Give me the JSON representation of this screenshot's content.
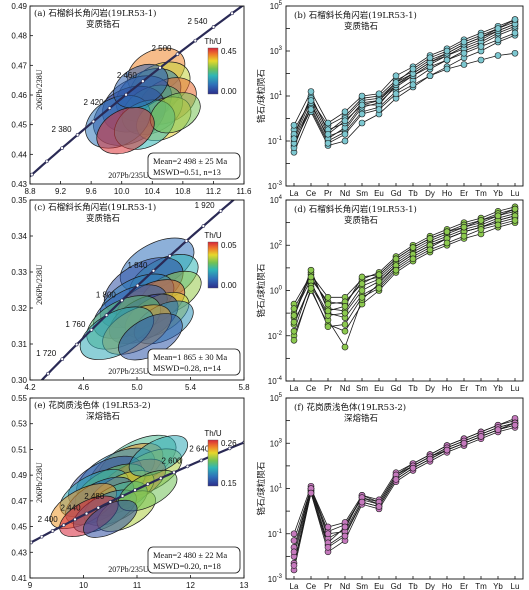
{
  "chart_data": [
    {
      "panel": "a",
      "type": "scatter",
      "kind": "concordia",
      "title": "(a) 石榴斜长角闪岩(19LR53-1)",
      "subtitle": "变质锆石",
      "xlabel": "207Pb/235U",
      "ylabel": "206Pb/238U",
      "xlim": [
        8.8,
        11.6
      ],
      "ylim": [
        0.43,
        0.49
      ],
      "xticks": [
        "8.8",
        "9.2",
        "9.6",
        "10.0",
        "10.4",
        "10.8",
        "11.2",
        "11.6"
      ],
      "yticks": [
        "0.43",
        "0.44",
        "0.45",
        "0.46",
        "0.47",
        "0.48",
        "0.49"
      ],
      "ages": [
        "2 380",
        "2 420",
        "2 460",
        "2 500",
        "2 540"
      ],
      "colorbar": {
        "label": "Th/U",
        "max": "0.45",
        "min": "0.00"
      },
      "stats": {
        "line1": "Mean=2 498 ± 25 Ma",
        "line2": "MSWD=0.51, n=13"
      },
      "ellipses": [
        {
          "x": 10.45,
          "y": 0.468,
          "rx": 0.4,
          "ry": 0.007,
          "tu": 0.38
        },
        {
          "x": 10.5,
          "y": 0.463,
          "rx": 0.42,
          "ry": 0.0072,
          "tu": 0.3
        },
        {
          "x": 10.35,
          "y": 0.46,
          "rx": 0.45,
          "ry": 0.008,
          "tu": 0.12
        },
        {
          "x": 10.6,
          "y": 0.458,
          "rx": 0.4,
          "ry": 0.007,
          "tu": 0.4
        },
        {
          "x": 10.2,
          "y": 0.457,
          "rx": 0.48,
          "ry": 0.0085,
          "tu": 0.05
        },
        {
          "x": 10.4,
          "y": 0.455,
          "rx": 0.42,
          "ry": 0.0075,
          "tu": 0.22
        },
        {
          "x": 10.1,
          "y": 0.453,
          "rx": 0.5,
          "ry": 0.009,
          "tu": 0.02
        },
        {
          "x": 10.55,
          "y": 0.452,
          "rx": 0.38,
          "ry": 0.0065,
          "tu": 0.33
        },
        {
          "x": 9.95,
          "y": 0.451,
          "rx": 0.45,
          "ry": 0.008,
          "tu": 0.1
        },
        {
          "x": 10.3,
          "y": 0.45,
          "rx": 0.42,
          "ry": 0.0075,
          "tu": 0.18
        },
        {
          "x": 10.7,
          "y": 0.454,
          "rx": 0.35,
          "ry": 0.006,
          "tu": 0.25
        },
        {
          "x": 10.05,
          "y": 0.448,
          "rx": 0.4,
          "ry": 0.007,
          "tu": 0.44
        },
        {
          "x": 10.25,
          "y": 0.463,
          "rx": 0.38,
          "ry": 0.0065,
          "tu": 0.07
        }
      ]
    },
    {
      "panel": "b",
      "type": "line",
      "kind": "ree",
      "title": "(b) 石榴斜长角闪岩(19LR53-1)",
      "subtitle": "变质锆石",
      "ylabel": "锆石/球粒陨石",
      "categories": [
        "La",
        "Ce",
        "Pr",
        "Nd",
        "Sm",
        "Eu",
        "Gd",
        "Tb",
        "Dy",
        "Ho",
        "Er",
        "Tm",
        "Yb",
        "Lu"
      ],
      "ylim_log": [
        -3,
        5
      ],
      "color": "#7cc7d0",
      "series": [
        {
          "values": [
            -0.5,
            0.8,
            -0.3,
            0.1,
            0.9,
            1.0,
            1.7,
            2.1,
            2.6,
            2.9,
            3.3,
            3.6,
            4.0,
            4.3
          ]
        },
        {
          "values": [
            -1.2,
            0.5,
            -1.0,
            -0.6,
            0.3,
            0.5,
            1.2,
            1.7,
            2.2,
            2.6,
            3.0,
            3.3,
            3.7,
            4.0
          ]
        },
        {
          "values": [
            -0.8,
            1.0,
            -0.6,
            0.0,
            0.8,
            0.9,
            1.6,
            2.0,
            2.5,
            2.8,
            3.2,
            3.5,
            3.9,
            4.2
          ]
        },
        {
          "values": [
            -1.5,
            0.3,
            -1.2,
            -1.0,
            -0.2,
            0.2,
            0.9,
            1.4,
            1.9,
            2.3,
            2.7,
            3.0,
            3.4,
            3.7
          ]
        },
        {
          "values": [
            -0.3,
            1.2,
            -0.2,
            0.3,
            1.0,
            1.1,
            1.9,
            2.3,
            2.8,
            3.1,
            3.5,
            3.8,
            4.1,
            4.4
          ]
        },
        {
          "values": [
            -1.0,
            0.6,
            -0.8,
            -0.5,
            0.5,
            0.7,
            1.4,
            1.9,
            2.4,
            2.8,
            3.1,
            3.4,
            3.8,
            4.1
          ]
        },
        {
          "values": [
            -1.3,
            0.7,
            -0.9,
            -0.4,
            0.6,
            0.6,
            1.5,
            1.9,
            2.3,
            2.6,
            2.9,
            3.2,
            3.5,
            3.8
          ]
        },
        {
          "values": [
            -0.7,
            0.9,
            -0.5,
            -0.2,
            0.7,
            0.8,
            1.5,
            2.0,
            2.5,
            2.9,
            3.3,
            3.6,
            3.9,
            4.2
          ]
        },
        {
          "values": [
            -1.1,
            0.4,
            -1.1,
            -0.7,
            0.2,
            0.4,
            1.1,
            1.5,
            1.9,
            2.2,
            2.4,
            2.6,
            2.8,
            2.9
          ]
        },
        {
          "values": [
            -0.9,
            0.8,
            -0.7,
            -0.1,
            0.6,
            0.8,
            1.6,
            2.2,
            2.7,
            3.0,
            3.4,
            3.7,
            4.0,
            4.4
          ]
        }
      ]
    },
    {
      "panel": "c",
      "type": "scatter",
      "kind": "concordia",
      "title": "(c) 石榴斜长角闪岩(19LR53-1)",
      "subtitle": "变质锆石",
      "xlabel": "207Pb/235U",
      "ylabel": "206Pb/238U",
      "xlim": [
        4.2,
        5.8
      ],
      "ylim": [
        0.3,
        0.35
      ],
      "xticks": [
        "4.2",
        "4.6",
        "5.0",
        "5.4",
        "5.8"
      ],
      "yticks": [
        "0.30",
        "0.31",
        "0.32",
        "0.33",
        "0.34",
        "0.35"
      ],
      "ages": [
        "1 720",
        "1 760",
        "1 800",
        "1 840",
        "1 920"
      ],
      "colorbar": {
        "label": "Th/U",
        "max": "0.05",
        "min": "0.00"
      },
      "stats": {
        "line1": "Mean=1 865 ± 30 Ma",
        "line2": "MSWD=0.28, n=14"
      },
      "ellipses": [
        {
          "x": 5.15,
          "y": 0.332,
          "rx": 0.3,
          "ry": 0.006,
          "tu": 0.01
        },
        {
          "x": 5.2,
          "y": 0.328,
          "rx": 0.28,
          "ry": 0.0055,
          "tu": 0.02
        },
        {
          "x": 5.05,
          "y": 0.326,
          "rx": 0.32,
          "ry": 0.0065,
          "tu": 0.005
        },
        {
          "x": 5.25,
          "y": 0.324,
          "rx": 0.25,
          "ry": 0.005,
          "tu": 0.03
        },
        {
          "x": 5.0,
          "y": 0.322,
          "rx": 0.3,
          "ry": 0.006,
          "tu": 0.012
        },
        {
          "x": 5.1,
          "y": 0.321,
          "rx": 0.28,
          "ry": 0.0055,
          "tu": 0.045
        },
        {
          "x": 4.95,
          "y": 0.319,
          "rx": 0.3,
          "ry": 0.006,
          "tu": 0.008
        },
        {
          "x": 5.15,
          "y": 0.318,
          "rx": 0.26,
          "ry": 0.005,
          "tu": 0.035
        },
        {
          "x": 5.05,
          "y": 0.317,
          "rx": 0.28,
          "ry": 0.0055,
          "tu": 0.002
        },
        {
          "x": 4.9,
          "y": 0.316,
          "rx": 0.3,
          "ry": 0.006,
          "tu": 0.025
        },
        {
          "x": 5.2,
          "y": 0.316,
          "rx": 0.24,
          "ry": 0.0048,
          "tu": 0.015
        },
        {
          "x": 5.0,
          "y": 0.314,
          "rx": 0.28,
          "ry": 0.0055,
          "tu": 0.04
        },
        {
          "x": 4.85,
          "y": 0.313,
          "rx": 0.3,
          "ry": 0.0058,
          "tu": 0.018
        },
        {
          "x": 5.1,
          "y": 0.312,
          "rx": 0.26,
          "ry": 0.0052,
          "tu": 0.006
        }
      ]
    },
    {
      "panel": "d",
      "type": "line",
      "kind": "ree",
      "title": "(d) 石榴斜长角闪岩(19LR53-1)",
      "subtitle": "变质锆石",
      "ylabel": "锆石/球粒陨石",
      "categories": [
        "La",
        "Ce",
        "Pr",
        "Nd",
        "Sm",
        "Eu",
        "Gd",
        "Tb",
        "Dy",
        "Ho",
        "Er",
        "Tm",
        "Yb",
        "Lu"
      ],
      "ylim_log": [
        -4,
        4
      ],
      "color": "#8cc94f",
      "series": [
        {
          "values": [
            -1.0,
            0.5,
            -0.5,
            -0.6,
            0.4,
            0.6,
            1.3,
            1.8,
            2.2,
            2.5,
            2.8,
            3.0,
            3.3,
            3.5
          ]
        },
        {
          "values": [
            -1.5,
            0.3,
            -1.0,
            -1.2,
            -0.2,
            0.2,
            1.0,
            1.5,
            1.9,
            2.3,
            2.6,
            2.8,
            3.1,
            3.3
          ]
        },
        {
          "values": [
            -0.6,
            0.7,
            -0.3,
            -0.3,
            0.5,
            0.8,
            1.5,
            2.0,
            2.4,
            2.7,
            3.0,
            3.2,
            3.5,
            3.7
          ]
        },
        {
          "values": [
            -2.0,
            0.0,
            -1.5,
            -1.8,
            -0.6,
            0.0,
            0.8,
            1.3,
            1.7,
            2.0,
            2.3,
            2.5,
            2.8,
            3.0
          ]
        },
        {
          "values": [
            -1.2,
            0.8,
            -0.8,
            -0.9,
            0.2,
            0.5,
            1.2,
            1.7,
            2.1,
            2.4,
            2.7,
            2.9,
            3.2,
            3.4
          ]
        },
        {
          "values": [
            -1.8,
            0.4,
            -1.3,
            -2.5,
            -0.4,
            0.3,
            1.1,
            1.6,
            2.0,
            2.3,
            2.6,
            2.8,
            3.0,
            3.2
          ]
        },
        {
          "values": [
            -0.8,
            0.6,
            -0.6,
            -0.5,
            0.3,
            0.7,
            1.4,
            1.9,
            2.3,
            2.6,
            2.9,
            3.1,
            3.4,
            3.6
          ]
        },
        {
          "values": [
            -1.4,
            0.2,
            -1.1,
            -1.0,
            0.0,
            0.4,
            1.1,
            1.6,
            2.0,
            2.3,
            2.6,
            2.8,
            3.1,
            3.3
          ]
        },
        {
          "values": [
            -2.2,
            0.1,
            -1.6,
            -1.5,
            -0.3,
            0.1,
            0.9,
            1.4,
            1.8,
            2.1,
            2.4,
            2.7,
            2.9,
            3.1
          ]
        },
        {
          "values": [
            -1.1,
            0.9,
            -0.9,
            -0.7,
            0.6,
            0.7,
            1.4,
            1.9,
            2.3,
            2.6,
            2.8,
            3.1,
            3.3,
            3.6
          ]
        }
      ]
    },
    {
      "panel": "e",
      "type": "scatter",
      "kind": "concordia",
      "title": "(e) 花岗质浅色体 (19LR53-2)",
      "subtitle": "深熔锆石",
      "xlabel": "207Pb/235U",
      "ylabel": "206Pb/238U",
      "xlim": [
        9,
        13
      ],
      "ylim": [
        0.41,
        0.55
      ],
      "xticks": [
        "9",
        "10",
        "11",
        "12",
        "13"
      ],
      "yticks": [
        "0.41",
        "0.43",
        "0.45",
        "0.47",
        "0.49",
        "0.51",
        "0.53",
        "0.55"
      ],
      "ages": [
        "2 400",
        "2 440",
        "2 480",
        "2 600",
        "2 640"
      ],
      "colorbar": {
        "label": "Th/U",
        "max": "0.26",
        "min": "0.15"
      },
      "stats": {
        "line1": "Mean=2 480 ± 22 Ma",
        "line2": "MSWD=0.20, n=18"
      },
      "ellipses": [
        {
          "x": 11.0,
          "y": 0.5,
          "rx": 0.8,
          "ry": 0.016,
          "tu": 0.2
        },
        {
          "x": 10.8,
          "y": 0.495,
          "rx": 0.75,
          "ry": 0.015,
          "tu": 0.24
        },
        {
          "x": 10.6,
          "y": 0.49,
          "rx": 0.8,
          "ry": 0.016,
          "tu": 0.18
        },
        {
          "x": 11.2,
          "y": 0.492,
          "rx": 0.7,
          "ry": 0.014,
          "tu": 0.22
        },
        {
          "x": 10.4,
          "y": 0.485,
          "rx": 0.75,
          "ry": 0.015,
          "tu": 0.16
        },
        {
          "x": 10.9,
          "y": 0.484,
          "rx": 0.7,
          "ry": 0.014,
          "tu": 0.25
        },
        {
          "x": 10.5,
          "y": 0.48,
          "rx": 0.72,
          "ry": 0.014,
          "tu": 0.21
        },
        {
          "x": 10.2,
          "y": 0.476,
          "rx": 0.7,
          "ry": 0.014,
          "tu": 0.19
        },
        {
          "x": 10.7,
          "y": 0.476,
          "rx": 0.68,
          "ry": 0.013,
          "tu": 0.23
        },
        {
          "x": 10.3,
          "y": 0.47,
          "rx": 0.7,
          "ry": 0.014,
          "tu": 0.17
        },
        {
          "x": 10.6,
          "y": 0.468,
          "rx": 0.65,
          "ry": 0.013,
          "tu": 0.2
        },
        {
          "x": 10.0,
          "y": 0.466,
          "rx": 0.68,
          "ry": 0.013,
          "tu": 0.24
        },
        {
          "x": 10.4,
          "y": 0.462,
          "rx": 0.65,
          "ry": 0.012,
          "tu": 0.18
        },
        {
          "x": 10.8,
          "y": 0.462,
          "rx": 0.6,
          "ry": 0.012,
          "tu": 0.22
        },
        {
          "x": 10.1,
          "y": 0.458,
          "rx": 0.6,
          "ry": 0.012,
          "tu": 0.26
        },
        {
          "x": 11.4,
          "y": 0.505,
          "rx": 0.6,
          "ry": 0.012,
          "tu": 0.19
        },
        {
          "x": 11.2,
          "y": 0.478,
          "rx": 0.6,
          "ry": 0.012,
          "tu": 0.21
        },
        {
          "x": 10.5,
          "y": 0.456,
          "rx": 0.55,
          "ry": 0.011,
          "tu": 0.16
        }
      ]
    },
    {
      "panel": "f",
      "type": "line",
      "kind": "ree",
      "title": "(f) 花岗质浅色体(19LR53-2)",
      "subtitle": "深熔锆石",
      "ylabel": "锆石/球粒陨石",
      "categories": [
        "La",
        "Ce",
        "Pr",
        "Nd",
        "Sm",
        "Eu",
        "Gd",
        "Tb",
        "Dy",
        "Ho",
        "Er",
        "Tm",
        "Yb",
        "Lu"
      ],
      "ylim_log": [
        -3,
        5
      ],
      "color": "#c579bd",
      "series": [
        {
          "values": [
            -1.6,
            1.0,
            -0.9,
            -0.6,
            0.6,
            0.3,
            1.5,
            2.0,
            2.4,
            2.8,
            3.1,
            3.4,
            3.7,
            3.9
          ]
        },
        {
          "values": [
            -2.3,
            0.9,
            -1.5,
            -1.0,
            0.4,
            0.2,
            1.4,
            1.9,
            2.3,
            2.7,
            3.0,
            3.3,
            3.6,
            3.8
          ]
        },
        {
          "values": [
            -1.0,
            1.1,
            -1.2,
            -0.8,
            0.7,
            0.4,
            1.6,
            2.1,
            2.5,
            2.9,
            3.2,
            3.5,
            3.8,
            4.0
          ]
        },
        {
          "values": [
            -2.6,
            0.8,
            -1.8,
            -1.3,
            0.3,
            0.1,
            1.3,
            1.8,
            2.2,
            2.6,
            2.9,
            3.2,
            3.5,
            3.7
          ]
        },
        {
          "values": [
            -1.3,
            1.0,
            -0.7,
            -0.5,
            0.7,
            0.5,
            1.7,
            2.1,
            2.5,
            2.9,
            3.2,
            3.5,
            3.8,
            4.1
          ]
        },
        {
          "values": [
            -2.0,
            0.9,
            -1.0,
            -0.9,
            0.5,
            0.3,
            1.5,
            2.0,
            2.4,
            2.7,
            3.0,
            3.3,
            3.6,
            3.9
          ]
        },
        {
          "values": [
            -1.8,
            1.0,
            -1.4,
            -0.7,
            0.6,
            0.4,
            1.6,
            2.0,
            2.4,
            2.8,
            3.1,
            3.4,
            3.7,
            3.9
          ]
        },
        {
          "values": [
            -2.4,
            0.8,
            -1.6,
            -1.1,
            0.4,
            0.2,
            1.4,
            1.9,
            2.3,
            2.7,
            3.0,
            3.3,
            3.6,
            3.8
          ]
        }
      ]
    }
  ]
}
